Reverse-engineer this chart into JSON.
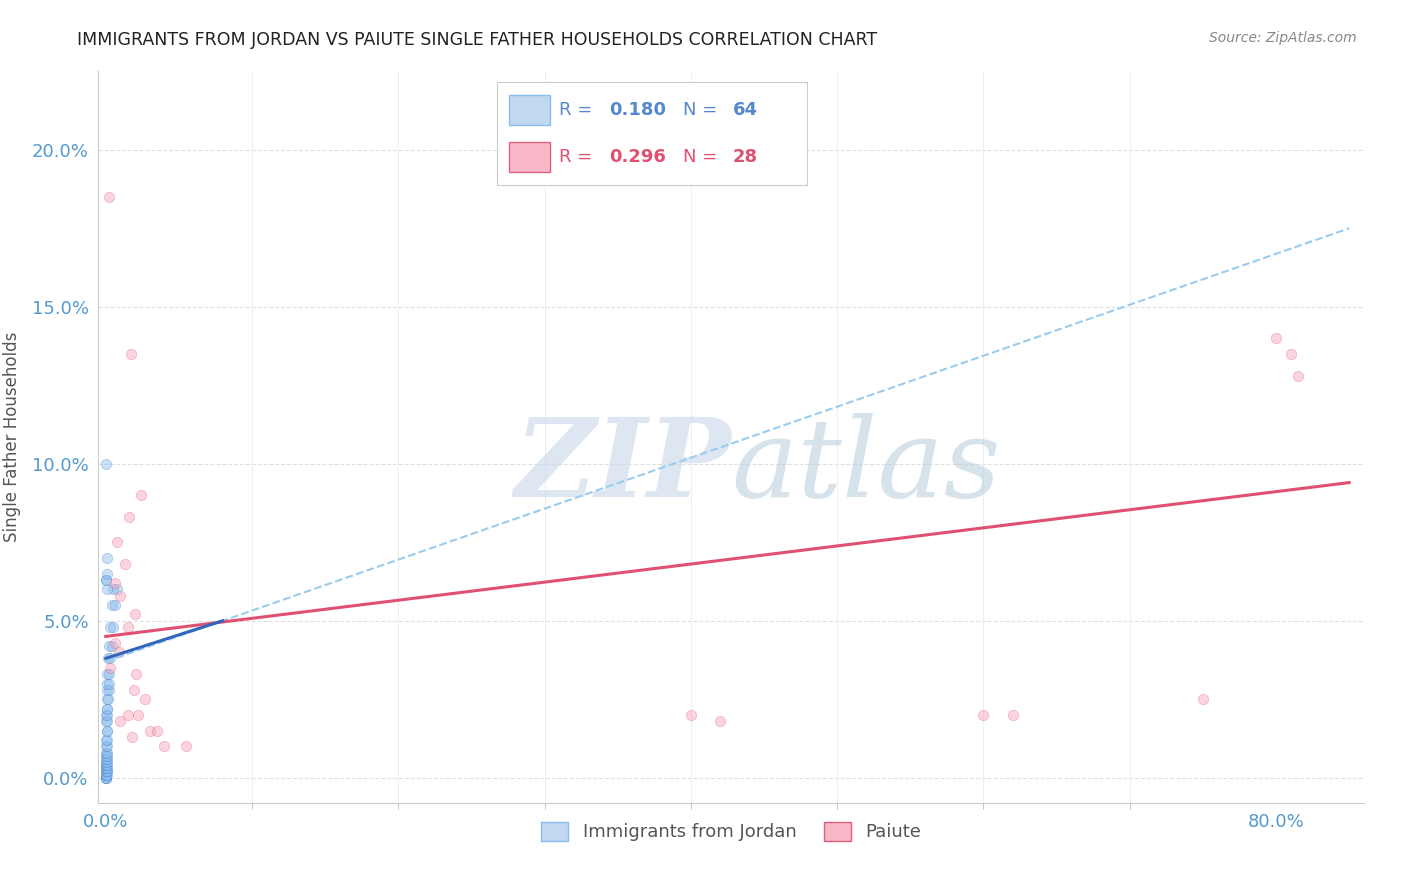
{
  "title": "IMMIGRANTS FROM JORDAN VS PAIUTE SINGLE FATHER HOUSEHOLDS CORRELATION CHART",
  "source": "Source: ZipAtlas.com",
  "xlim": [
    -0.005,
    0.86
  ],
  "ylim": [
    -0.008,
    0.225
  ],
  "ylabel": "Single Father Households",
  "bg_color": "#ffffff",
  "scatter_alpha": 0.45,
  "scatter_size": 55,
  "grid_color": "#e0e0e0",
  "title_color": "#222222",
  "axis_color": "#5599cc",
  "jordan_color": "#88bbee",
  "jordan_edge": "#5588cc",
  "paiute_color": "#f8a0b8",
  "paiute_edge": "#e06080",
  "jordan_dashed_color": "#99ccee",
  "paiute_line_color": "#e05070",
  "jordan_line_color": "#3366bb",
  "watermark_zip_color": "#c8d8e8",
  "watermark_atlas_color": "#b0c8d8",
  "jordan_scatter": [
    [
      0.0002,
      0.0
    ],
    [
      0.0003,
      0.0
    ],
    [
      0.0004,
      0.0
    ],
    [
      0.0005,
      0.0
    ],
    [
      0.0002,
      0.001
    ],
    [
      0.0003,
      0.001
    ],
    [
      0.0005,
      0.001
    ],
    [
      0.0007,
      0.001
    ],
    [
      0.0002,
      0.002
    ],
    [
      0.0004,
      0.002
    ],
    [
      0.0006,
      0.002
    ],
    [
      0.0008,
      0.002
    ],
    [
      0.0003,
      0.003
    ],
    [
      0.0005,
      0.003
    ],
    [
      0.0007,
      0.003
    ],
    [
      0.0003,
      0.004
    ],
    [
      0.0005,
      0.004
    ],
    [
      0.0008,
      0.004
    ],
    [
      0.0004,
      0.005
    ],
    [
      0.0006,
      0.005
    ],
    [
      0.0003,
      0.006
    ],
    [
      0.0007,
      0.006
    ],
    [
      0.0004,
      0.007
    ],
    [
      0.0008,
      0.007
    ],
    [
      0.0005,
      0.008
    ],
    [
      0.0009,
      0.008
    ],
    [
      0.0004,
      0.01
    ],
    [
      0.0007,
      0.01
    ],
    [
      0.0005,
      0.012
    ],
    [
      0.0009,
      0.012
    ],
    [
      0.0006,
      0.015
    ],
    [
      0.001,
      0.015
    ],
    [
      0.0005,
      0.018
    ],
    [
      0.001,
      0.018
    ],
    [
      0.0005,
      0.02
    ],
    [
      0.001,
      0.02
    ],
    [
      0.0006,
      0.022
    ],
    [
      0.0012,
      0.022
    ],
    [
      0.0007,
      0.025
    ],
    [
      0.0015,
      0.025
    ],
    [
      0.0008,
      0.028
    ],
    [
      0.002,
      0.028
    ],
    [
      0.001,
      0.03
    ],
    [
      0.002,
      0.03
    ],
    [
      0.0012,
      0.033
    ],
    [
      0.0025,
      0.033
    ],
    [
      0.0015,
      0.038
    ],
    [
      0.003,
      0.038
    ],
    [
      0.002,
      0.042
    ],
    [
      0.004,
      0.042
    ],
    [
      0.003,
      0.048
    ],
    [
      0.005,
      0.048
    ],
    [
      0.004,
      0.055
    ],
    [
      0.006,
      0.055
    ],
    [
      0.005,
      0.06
    ],
    [
      0.008,
      0.06
    ],
    [
      0.001,
      0.06
    ],
    [
      0.0003,
      0.063
    ],
    [
      0.0005,
      0.063
    ],
    [
      0.0006,
      0.065
    ],
    [
      0.0002,
      0.1
    ],
    [
      0.0006,
      0.07
    ]
  ],
  "paiute_scatter": [
    [
      0.002,
      0.185
    ],
    [
      0.017,
      0.135
    ],
    [
      0.024,
      0.09
    ],
    [
      0.016,
      0.083
    ],
    [
      0.008,
      0.075
    ],
    [
      0.013,
      0.068
    ],
    [
      0.006,
      0.062
    ],
    [
      0.01,
      0.058
    ],
    [
      0.02,
      0.052
    ],
    [
      0.015,
      0.048
    ],
    [
      0.006,
      0.043
    ],
    [
      0.009,
      0.04
    ],
    [
      0.003,
      0.035
    ],
    [
      0.021,
      0.033
    ],
    [
      0.019,
      0.028
    ],
    [
      0.027,
      0.025
    ],
    [
      0.022,
      0.02
    ],
    [
      0.015,
      0.02
    ],
    [
      0.01,
      0.018
    ],
    [
      0.03,
      0.015
    ],
    [
      0.035,
      0.015
    ],
    [
      0.018,
      0.013
    ],
    [
      0.04,
      0.01
    ],
    [
      0.055,
      0.01
    ],
    [
      0.4,
      0.02
    ],
    [
      0.42,
      0.018
    ],
    [
      0.6,
      0.02
    ],
    [
      0.62,
      0.02
    ],
    [
      0.75,
      0.025
    ],
    [
      0.8,
      0.14
    ],
    [
      0.81,
      0.135
    ],
    [
      0.815,
      0.128
    ]
  ],
  "jordan_reg": [
    0.0,
    0.08,
    0.038,
    0.05
  ],
  "paiute_reg": [
    0.0,
    0.85,
    0.045,
    0.094
  ],
  "jordan_dashed": [
    0.0,
    0.85,
    0.037,
    0.175
  ]
}
